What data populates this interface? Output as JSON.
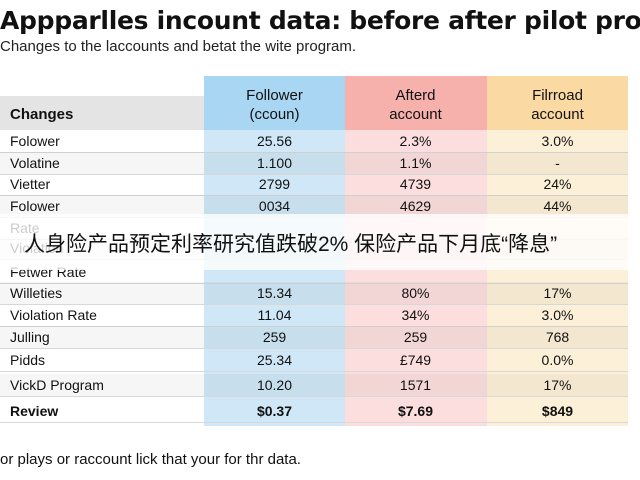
{
  "title": "Appparlles incount data: before after pilot program",
  "subtitle": "Changes to the laccounts and betat the wite program.",
  "headers": {
    "left": "Changes",
    "follower": "Follower\n(ccoun)",
    "afterd": "Afterd\naccount",
    "fill": "Filrroad\naccount"
  },
  "rows": [
    {
      "label": "Folower",
      "a": "25.56",
      "b": "2.3%",
      "c": "3.0%"
    },
    {
      "label": "Volatine",
      "a": "1.100",
      "b": "1.1%",
      "c": "-"
    },
    {
      "label": "Vietter",
      "a": "2799",
      "b": "4739",
      "c": "24%"
    },
    {
      "label": "Folower",
      "a": "0034",
      "b": "4629",
      "c": "44%"
    },
    {
      "label": "Rate",
      "a": "",
      "b": "",
      "c": ""
    },
    {
      "label": "Violation",
      "a": "",
      "b": "",
      "c": ""
    },
    {
      "label": "Fetwer Rate",
      "a": "",
      "b": "",
      "c": ""
    },
    {
      "label": "Willeties",
      "a": "15.34",
      "b": "80%",
      "c": "17%"
    },
    {
      "label": "Violation Rate",
      "a": "11.04",
      "b": "34%",
      "c": "3.0%"
    },
    {
      "label": "Julling",
      "a": "259",
      "b": "259",
      "c": "768"
    },
    {
      "label": "Pidds",
      "a": "25.34",
      "b": "£749",
      "c": "0.0%"
    },
    {
      "label": "VickD Program",
      "a": "10.20",
      "b": "1571",
      "c": "17%"
    },
    {
      "label": "Review",
      "a": "$0.37",
      "b": "$7.69",
      "c": "$849"
    }
  ],
  "caption": "or plays or raccount lick that your for thr data.",
  "overlay": "人身险产品预定利率研究值跌破2% 保险产品下月底“降息”"
}
